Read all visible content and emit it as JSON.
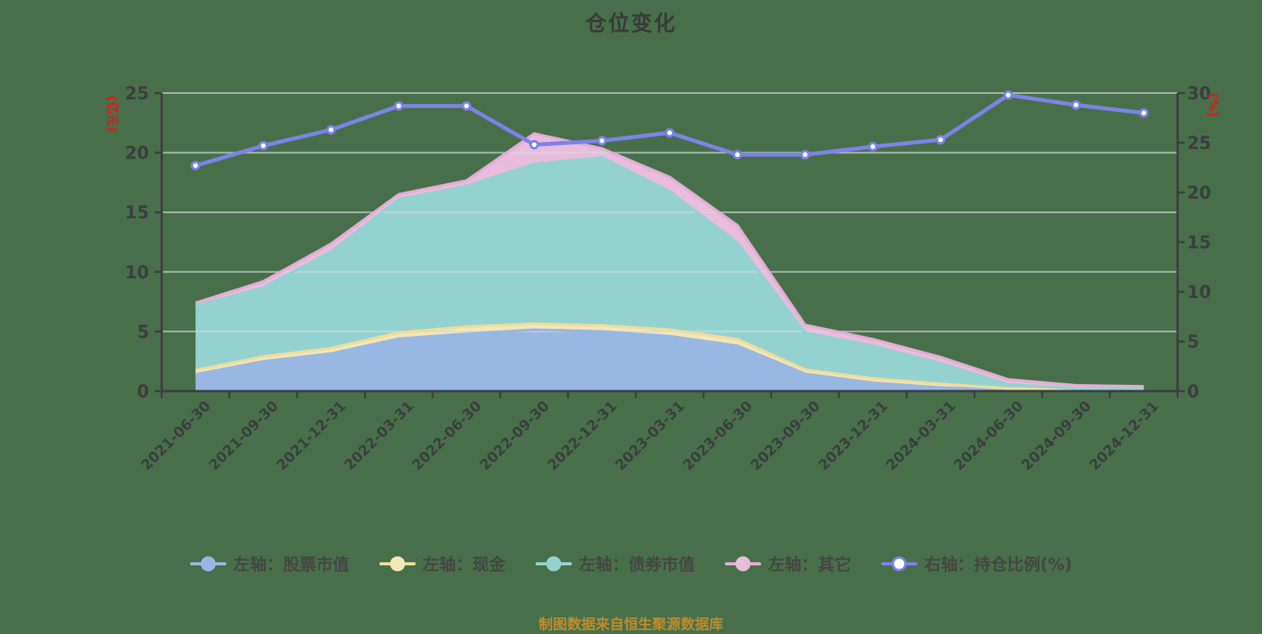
{
  "title": "仓位变化",
  "footer_note": "制图数据来自恒生聚源数据库",
  "colors": {
    "background": "#47704a",
    "title_text": "#3a3a3a",
    "axis_line": "#3c3d41",
    "tick_label": "#3c3d41",
    "grid_line": "#d4d8de",
    "axis_name_red": "#e81414",
    "footer_text": "#be8c2d",
    "legend_text": "#454545",
    "line_series": "#7d82e8"
  },
  "chart_data": {
    "type": "area",
    "stacked": true,
    "grid": "horizontal-only",
    "legend_position": "bottom-center",
    "categories": [
      "2021-06-30",
      "2021-09-30",
      "2021-12-31",
      "2022-03-31",
      "2022-06-30",
      "2022-09-30",
      "2022-12-31",
      "2023-03-31",
      "2023-06-30",
      "2023-09-30",
      "2023-12-31",
      "2024-03-31",
      "2024-06-30",
      "2024-09-30",
      "2024-12-31"
    ],
    "left_axis": {
      "name": "(亿元)",
      "min": 0,
      "max": 25,
      "ticks": [
        0,
        5,
        10,
        15,
        20,
        25
      ]
    },
    "right_axis": {
      "name": "(%)",
      "min": 0,
      "max": 30,
      "ticks": [
        0,
        5,
        10,
        15,
        20,
        25,
        30
      ]
    },
    "series": [
      {
        "key": "stock-market-value",
        "name": "左轴：股票市值",
        "axis": "left",
        "type": "area",
        "fill": "#99b7e3",
        "line": "#99b7e3",
        "values": [
          1.4,
          2.5,
          3.15,
          4.4,
          4.8,
          5.15,
          5.0,
          4.6,
          3.8,
          1.45,
          0.7,
          0.3,
          0.1,
          0.03,
          0.02
        ]
      },
      {
        "key": "cash",
        "name": "左轴：现金",
        "axis": "left",
        "type": "area",
        "fill": "#f3e7b9",
        "line": "#eedd9b",
        "values": [
          0.35,
          0.4,
          0.45,
          0.5,
          0.6,
          0.5,
          0.5,
          0.55,
          0.55,
          0.35,
          0.35,
          0.3,
          0.12,
          0.06,
          0.05
        ]
      },
      {
        "key": "bond-market-value",
        "name": "左轴：债券市值",
        "axis": "left",
        "type": "area",
        "fill": "#94d2cf",
        "line": "#94d2cf",
        "values": [
          5.4,
          5.8,
          8.1,
          11.2,
          11.8,
          13.4,
          14.1,
          11.6,
          8.1,
          3.1,
          2.75,
          1.75,
          0.35,
          0.13,
          0.1
        ]
      },
      {
        "key": "other",
        "name": "左轴：其它",
        "axis": "left",
        "type": "area",
        "fill": "#e9bcdc",
        "line": "#e2add4",
        "values": [
          0.25,
          0.5,
          0.65,
          0.4,
          0.45,
          2.55,
          0.75,
          1.2,
          1.45,
          0.65,
          0.55,
          0.5,
          0.4,
          0.26,
          0.23
        ]
      },
      {
        "key": "position-ratio",
        "name": "右轴：持仓比例(%)",
        "axis": "right",
        "type": "line",
        "marker": "hollow-circle",
        "line": "#7d82e8",
        "values": [
          22.7,
          24.7,
          26.3,
          28.7,
          28.7,
          24.8,
          25.2,
          26.0,
          23.8,
          23.8,
          24.6,
          25.3,
          29.8,
          28.8,
          28.0
        ]
      }
    ]
  }
}
